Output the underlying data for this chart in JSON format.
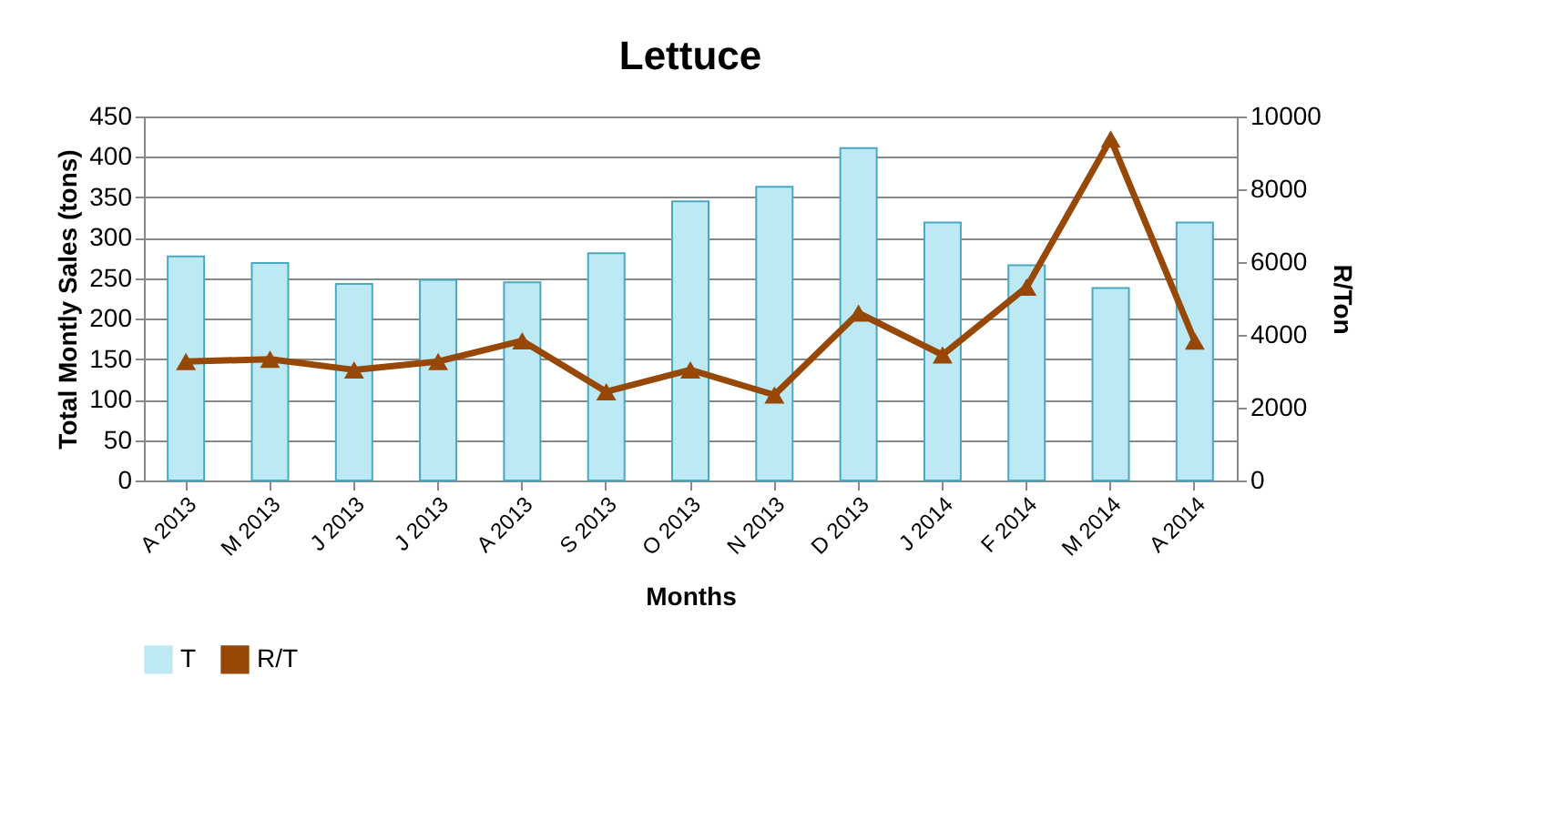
{
  "chart_data": {
    "type": "bar",
    "title": "Lettuce",
    "xlabel": "Months",
    "ylabel": "Total Montly Sales (tons)",
    "y2label": "R/Ton",
    "categories": [
      "A 2013",
      "M 2013",
      "J 2013",
      "J 2013",
      "A 2013",
      "S 2013",
      "O 2013",
      "N 2013",
      "D 2013",
      "J 2014",
      "F 2014",
      "M 2014",
      "A 2014"
    ],
    "series": [
      {
        "name": "T",
        "color": "#bde9f5",
        "values": [
          277,
          269,
          243,
          248,
          245,
          281,
          345,
          363,
          411,
          319,
          266,
          238,
          319
        ]
      },
      {
        "name": "R/T",
        "type": "line",
        "axis": "y2",
        "marker": "triangle",
        "color": "#974806",
        "values": [
          3270,
          3330,
          3040,
          3270,
          3840,
          2440,
          3040,
          2350,
          4600,
          3450,
          5310,
          9380,
          3830
        ]
      }
    ],
    "ylim": [
      0,
      450
    ],
    "yticks": [
      0,
      50,
      100,
      150,
      200,
      250,
      300,
      350,
      400,
      450
    ],
    "y2lim": [
      0,
      10000
    ],
    "y2ticks": [
      0,
      2000,
      4000,
      6000,
      8000,
      10000
    ],
    "grid": "y",
    "legend": "bottom"
  }
}
